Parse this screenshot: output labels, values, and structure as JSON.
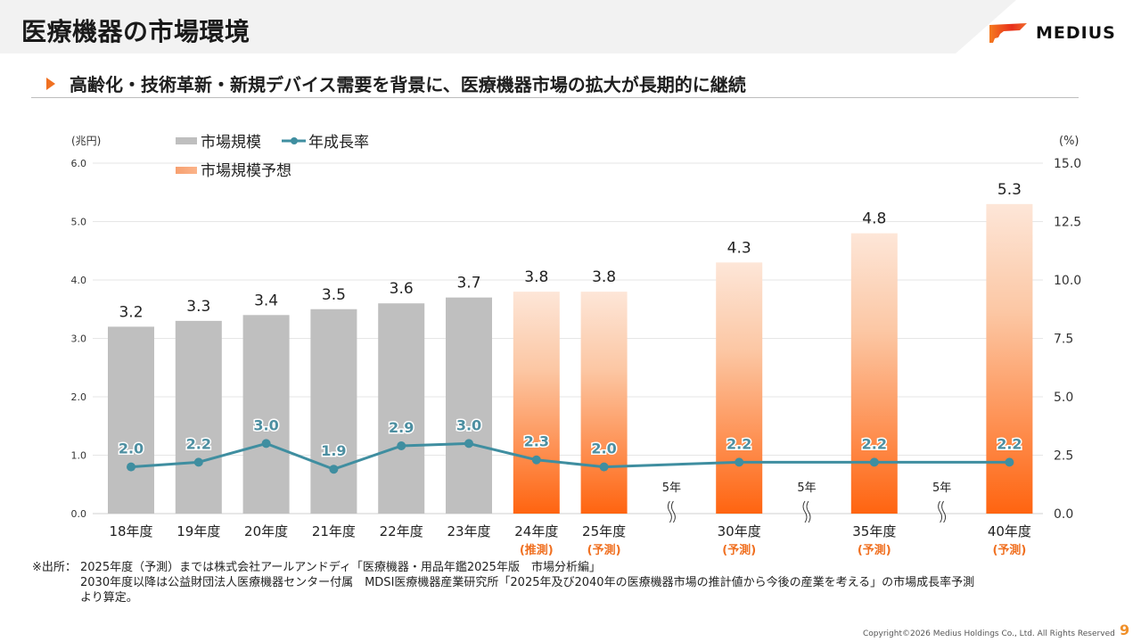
{
  "header": {
    "title": "医療機器の市場環境",
    "logo_text": "MEDIUS"
  },
  "subtitle": "高齢化・技術革新・新規デバイス需要を背景に、医療機器市場の拡大が長期的に継続",
  "colors": {
    "actual_bar": "#bfbfbf",
    "forecast_bar_top": "#fde3d3",
    "forecast_bar_bottom": "#ff6a10",
    "growth_line": "#3f8ea0",
    "accent": "#f07021"
  },
  "chart_data": {
    "type": "bar",
    "title": "",
    "left_axis": {
      "unit_label": "(兆円)",
      "range": [
        0,
        6
      ],
      "ticks": [
        "0.0",
        "1.0",
        "2.0",
        "3.0",
        "4.0",
        "5.0",
        "6.0"
      ]
    },
    "right_axis": {
      "unit_label": "(%)",
      "range": [
        0,
        15
      ],
      "ticks": [
        "0.0",
        "2.5",
        "5.0",
        "7.5",
        "10.0",
        "12.5",
        "15.0"
      ]
    },
    "grid": true,
    "legend": {
      "placement": "top-left",
      "items": [
        {
          "label": "市場規模",
          "kind": "bar-actual"
        },
        {
          "label": "年成長率",
          "kind": "line"
        },
        {
          "label": "市場規模予想",
          "kind": "bar-forecast"
        }
      ]
    },
    "slots": [
      {
        "category": "18年度",
        "note": "",
        "market_size": 3.2,
        "growth": 2.0,
        "forecast": false
      },
      {
        "category": "19年度",
        "note": "",
        "market_size": 3.3,
        "growth": 2.2,
        "forecast": false
      },
      {
        "category": "20年度",
        "note": "",
        "market_size": 3.4,
        "growth": 3.0,
        "forecast": false
      },
      {
        "category": "21年度",
        "note": "",
        "market_size": 3.5,
        "growth": 1.9,
        "forecast": false
      },
      {
        "category": "22年度",
        "note": "",
        "market_size": 3.6,
        "growth": 2.9,
        "forecast": false
      },
      {
        "category": "23年度",
        "note": "",
        "market_size": 3.7,
        "growth": 3.0,
        "forecast": false
      },
      {
        "category": "24年度",
        "note": "(推測)",
        "market_size": 3.8,
        "growth": 2.3,
        "forecast": true
      },
      {
        "category": "25年度",
        "note": "(予測)",
        "market_size": 3.8,
        "growth": 2.0,
        "forecast": true
      },
      {
        "gap": true,
        "gap_label": "5年"
      },
      {
        "category": "30年度",
        "note": "(予測)",
        "market_size": 4.3,
        "growth": 2.2,
        "forecast": true
      },
      {
        "gap": true,
        "gap_label": "5年"
      },
      {
        "category": "35年度",
        "note": "(予測)",
        "market_size": 4.8,
        "growth": 2.2,
        "forecast": true
      },
      {
        "gap": true,
        "gap_label": "5年"
      },
      {
        "category": "40年度",
        "note": "(予測)",
        "market_size": 5.3,
        "growth": 2.2,
        "forecast": true
      }
    ]
  },
  "source": {
    "label": "※出所：",
    "lines": [
      "2025年度（予測）までは株式会社アールアンドディ「医療機器・用品年鑑2025年版　市場分析編」",
      "2030年度以降は公益財団法人医療機器センター付属　MDSI医療機器産業研究所「2025年及び2040年の医療機器市場の推計値から今後の産業を考える」の市場成長率予測",
      "より算定。"
    ]
  },
  "footer": {
    "copyright": "Copyright©2026 Medius Holdings Co., Ltd. All Rights Reserved",
    "page_number": "9"
  }
}
